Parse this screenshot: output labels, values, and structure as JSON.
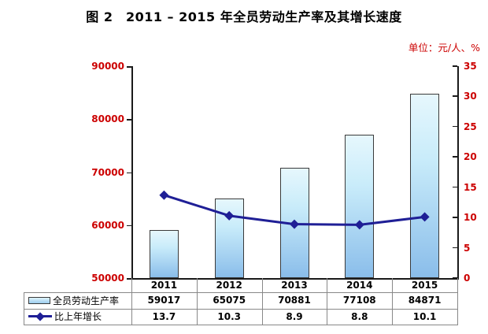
{
  "title": "图 2　2011 – 2015 年全员劳动生产率及其增长速度",
  "unit_label": "单位：元/人、%",
  "colors": {
    "axis_label_red": "#cc0000",
    "bar_fill_top": "#e6f7fd",
    "bar_fill_bottom": "#8abdea",
    "bar_border": "#3a3a3a",
    "line_color": "#1f1f96",
    "table_border": "#888888",
    "axis_line": "#1a1a1a"
  },
  "chart_data": {
    "type": "bar+line-combo",
    "categories": [
      "2011",
      "2012",
      "2013",
      "2014",
      "2015"
    ],
    "series": [
      {
        "name": "全员劳动生产率",
        "type": "bar",
        "axis": "left",
        "values": [
          59017,
          65075,
          70881,
          77108,
          84871
        ]
      },
      {
        "name": "比上年增长",
        "type": "line",
        "axis": "right",
        "values": [
          13.7,
          10.3,
          8.9,
          8.8,
          10.1
        ]
      }
    ],
    "left_axis": {
      "min": 50000,
      "max": 90000,
      "step": 10000,
      "tick_labels": [
        "90000",
        "80000",
        "70000",
        "60000",
        "50000"
      ]
    },
    "right_axis": {
      "min": 0,
      "max": 35,
      "step": 5,
      "tick_labels": [
        "35",
        "30",
        "25",
        "20",
        "15",
        "10",
        "5",
        "0"
      ]
    },
    "grid": false,
    "legend_position": "data-table-bottom"
  }
}
